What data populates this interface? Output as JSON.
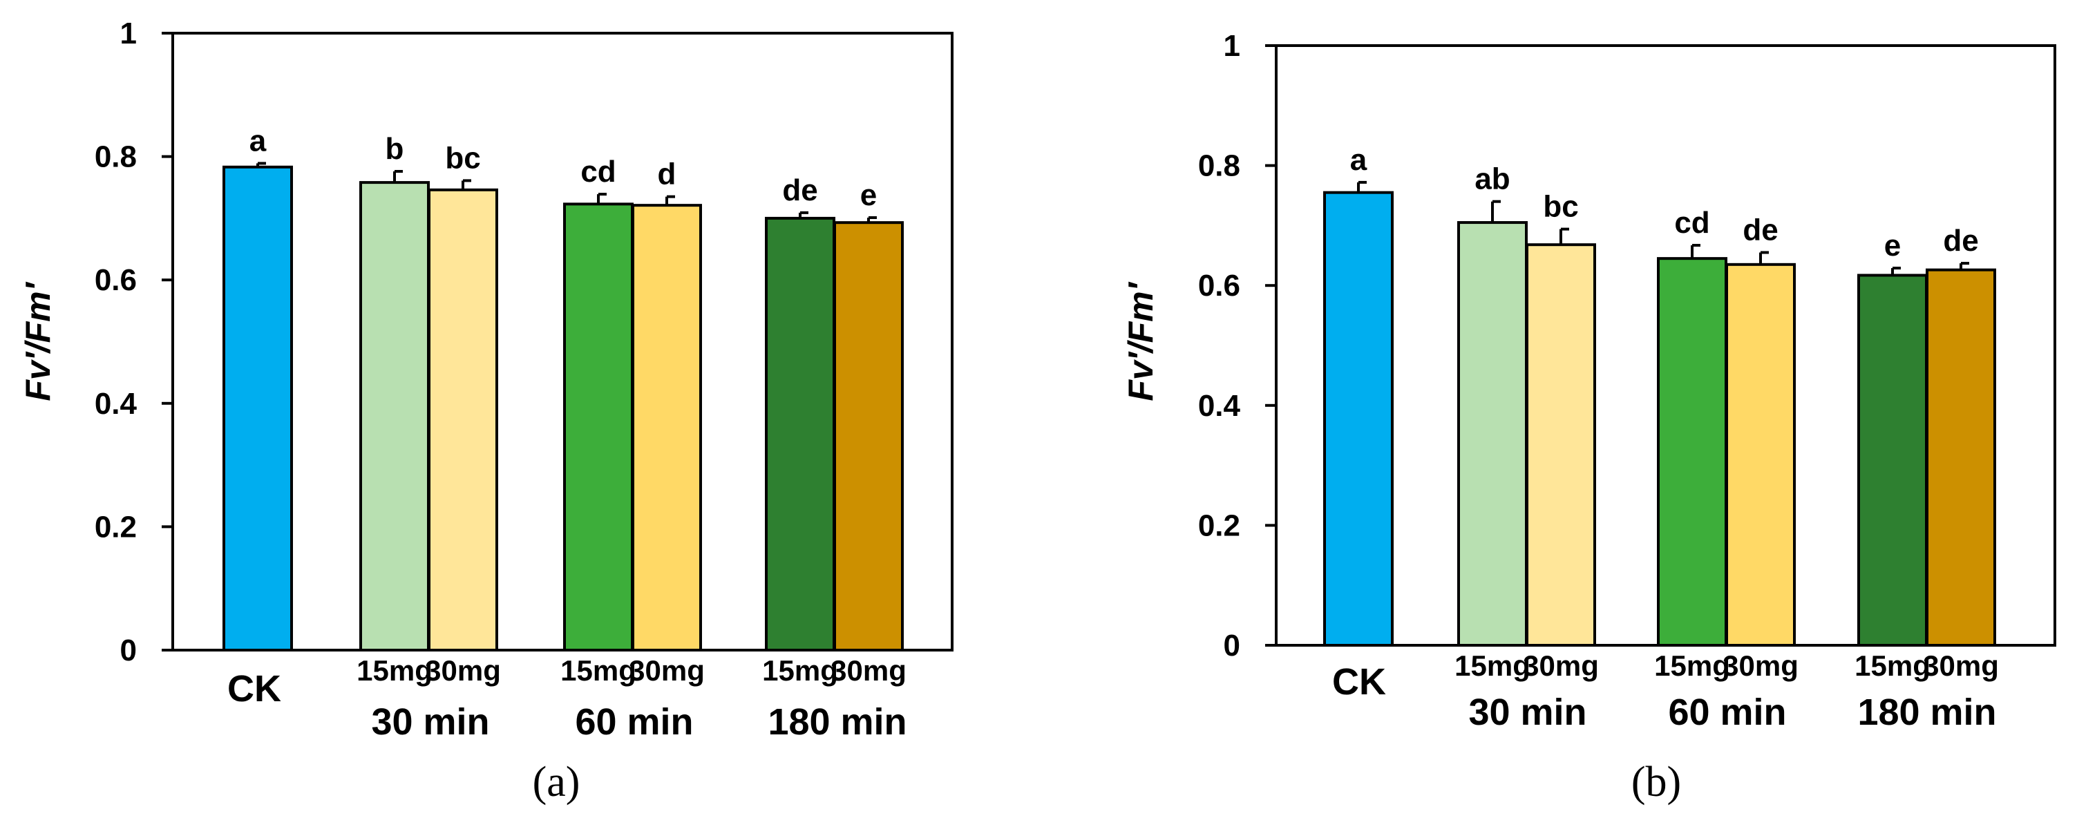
{
  "chart_data": [
    {
      "type": "bar",
      "panel_label": "(a)",
      "ylabel": "Fv′/Fm′",
      "ylim": [
        0,
        1
      ],
      "yticks": [
        "0",
        "0.2",
        "0.4",
        "0.6",
        "0.8",
        "1"
      ],
      "bars": [
        {
          "label": "CK",
          "value": 0.783,
          "error": 0.006,
          "letter": "a",
          "color": "#00AEEF"
        },
        {
          "label": "15mg",
          "group": "30 min",
          "value": 0.758,
          "error": 0.018,
          "letter": "b",
          "color": "#B8E0B1"
        },
        {
          "label": "30mg",
          "group": "30 min",
          "value": 0.746,
          "error": 0.015,
          "letter": "bc",
          "color": "#FFE699"
        },
        {
          "label": "15mg",
          "group": "60 min",
          "value": 0.723,
          "error": 0.016,
          "letter": "cd",
          "color": "#3DAE3A"
        },
        {
          "label": "30mg",
          "group": "60 min",
          "value": 0.721,
          "error": 0.014,
          "letter": "d",
          "color": "#FFD966"
        },
        {
          "label": "15mg",
          "group": "180 min",
          "value": 0.7,
          "error": 0.009,
          "letter": "de",
          "color": "#2E8030"
        },
        {
          "label": "30mg",
          "group": "180 min",
          "value": 0.693,
          "error": 0.008,
          "letter": "e",
          "color": "#CC9000"
        }
      ],
      "groups": [
        "30 min",
        "60 min",
        "180 min"
      ],
      "ck_label": "CK"
    },
    {
      "type": "bar",
      "panel_label": "(b)",
      "ylabel": "Fv′/Fm′",
      "ylim": [
        0,
        1
      ],
      "yticks": [
        "0",
        "0.2",
        "0.4",
        "0.6",
        "0.8",
        "1"
      ],
      "bars": [
        {
          "label": "CK",
          "value": 0.755,
          "error": 0.017,
          "letter": "a",
          "color": "#00AEEF"
        },
        {
          "label": "15mg",
          "group": "30 min",
          "value": 0.705,
          "error": 0.035,
          "letter": "ab",
          "color": "#B8E0B1"
        },
        {
          "label": "30mg",
          "group": "30 min",
          "value": 0.668,
          "error": 0.026,
          "letter": "bc",
          "color": "#FFE699"
        },
        {
          "label": "15mg",
          "group": "60 min",
          "value": 0.645,
          "error": 0.022,
          "letter": "cd",
          "color": "#3DAE3A"
        },
        {
          "label": "30mg",
          "group": "60 min",
          "value": 0.635,
          "error": 0.02,
          "letter": "de",
          "color": "#FFD966"
        },
        {
          "label": "15mg",
          "group": "180 min",
          "value": 0.617,
          "error": 0.012,
          "letter": "e",
          "color": "#2E8030"
        },
        {
          "label": "30mg",
          "group": "180 min",
          "value": 0.626,
          "error": 0.011,
          "letter": "de",
          "color": "#CC9000"
        }
      ],
      "groups": [
        "30 min",
        "60 min",
        "180 min"
      ],
      "ck_label": "CK"
    }
  ]
}
